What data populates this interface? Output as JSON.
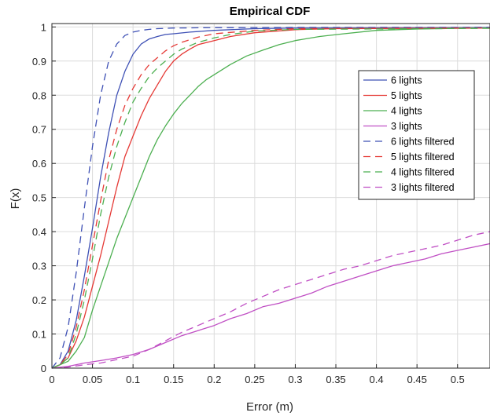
{
  "chart_data": {
    "type": "line",
    "title": "Empirical CDF",
    "xlabel": "Error (m)",
    "ylabel": "F(x)",
    "xlim": [
      0,
      0.54
    ],
    "ylim": [
      0,
      1.01
    ],
    "xticks": [
      0,
      0.05,
      0.1,
      0.15,
      0.2,
      0.25,
      0.3,
      0.35,
      0.4,
      0.45,
      0.5
    ],
    "xtick_labels": [
      "0",
      "0.05",
      "0.1",
      "0.15",
      "0.2",
      "0.25",
      "0.3",
      "0.35",
      "0.4",
      "0.45",
      "0.5"
    ],
    "yticks": [
      0,
      0.1,
      0.2,
      0.3,
      0.4,
      0.5,
      0.6,
      0.7,
      0.8,
      0.9,
      1
    ],
    "ytick_labels": [
      "0",
      "0.1",
      "0.2",
      "0.3",
      "0.4",
      "0.5",
      "0.6",
      "0.7",
      "0.8",
      "0.9",
      "1"
    ],
    "grid": true,
    "legend_position": "top-right",
    "series": [
      {
        "name": "6 lights",
        "color": "#3f51b5",
        "dashed": false,
        "x": [
          0,
          0.01,
          0.02,
          0.03,
          0.04,
          0.05,
          0.06,
          0.07,
          0.08,
          0.09,
          0.1,
          0.11,
          0.12,
          0.13,
          0.14,
          0.15,
          0.17,
          0.2,
          0.25,
          0.3,
          0.54
        ],
        "y": [
          0,
          0.01,
          0.05,
          0.14,
          0.27,
          0.41,
          0.56,
          0.69,
          0.8,
          0.87,
          0.92,
          0.95,
          0.965,
          0.972,
          0.978,
          0.98,
          0.985,
          0.99,
          0.995,
          0.997,
          0.998
        ]
      },
      {
        "name": "5 lights",
        "color": "#e53935",
        "dashed": false,
        "x": [
          0,
          0.01,
          0.02,
          0.03,
          0.04,
          0.05,
          0.06,
          0.07,
          0.08,
          0.09,
          0.1,
          0.11,
          0.12,
          0.13,
          0.14,
          0.15,
          0.16,
          0.17,
          0.18,
          0.2,
          0.22,
          0.25,
          0.3,
          0.35,
          0.54
        ],
        "y": [
          0,
          0.01,
          0.03,
          0.08,
          0.15,
          0.24,
          0.33,
          0.43,
          0.53,
          0.62,
          0.68,
          0.74,
          0.79,
          0.83,
          0.87,
          0.9,
          0.92,
          0.935,
          0.948,
          0.96,
          0.972,
          0.983,
          0.992,
          0.995,
          0.997
        ]
      },
      {
        "name": "4 lights",
        "color": "#4caf50",
        "dashed": false,
        "x": [
          0,
          0.01,
          0.02,
          0.03,
          0.04,
          0.05,
          0.06,
          0.07,
          0.08,
          0.09,
          0.1,
          0.11,
          0.12,
          0.13,
          0.14,
          0.15,
          0.16,
          0.17,
          0.18,
          0.19,
          0.2,
          0.22,
          0.24,
          0.26,
          0.28,
          0.3,
          0.33,
          0.36,
          0.4,
          0.45,
          0.5,
          0.54
        ],
        "y": [
          0,
          0.01,
          0.02,
          0.05,
          0.09,
          0.17,
          0.24,
          0.31,
          0.38,
          0.44,
          0.5,
          0.56,
          0.62,
          0.67,
          0.71,
          0.745,
          0.775,
          0.8,
          0.825,
          0.845,
          0.86,
          0.89,
          0.915,
          0.932,
          0.948,
          0.96,
          0.972,
          0.98,
          0.99,
          0.994,
          0.996,
          0.997
        ]
      },
      {
        "name": "3 lights",
        "color": "#c04fc4",
        "dashed": false,
        "x": [
          0,
          0.02,
          0.04,
          0.06,
          0.08,
          0.1,
          0.12,
          0.14,
          0.16,
          0.18,
          0.2,
          0.22,
          0.24,
          0.26,
          0.28,
          0.3,
          0.32,
          0.34,
          0.36,
          0.38,
          0.4,
          0.42,
          0.44,
          0.46,
          0.48,
          0.5,
          0.52,
          0.54
        ],
        "y": [
          0,
          0.005,
          0.015,
          0.022,
          0.03,
          0.04,
          0.055,
          0.075,
          0.095,
          0.11,
          0.125,
          0.145,
          0.16,
          0.18,
          0.19,
          0.205,
          0.22,
          0.24,
          0.255,
          0.27,
          0.285,
          0.3,
          0.31,
          0.32,
          0.335,
          0.345,
          0.355,
          0.365
        ]
      },
      {
        "name": "6 lights filtered",
        "color": "#3f51b5",
        "dashed": true,
        "x": [
          0,
          0.01,
          0.02,
          0.03,
          0.04,
          0.05,
          0.06,
          0.07,
          0.08,
          0.09,
          0.1,
          0.11,
          0.12,
          0.13,
          0.15,
          0.2,
          0.54
        ],
        "y": [
          0,
          0.03,
          0.12,
          0.28,
          0.47,
          0.65,
          0.8,
          0.9,
          0.95,
          0.975,
          0.985,
          0.99,
          0.993,
          0.995,
          0.997,
          0.998,
          0.999
        ]
      },
      {
        "name": "5 lights filtered",
        "color": "#e53935",
        "dashed": true,
        "x": [
          0,
          0.01,
          0.02,
          0.03,
          0.04,
          0.05,
          0.06,
          0.07,
          0.08,
          0.09,
          0.1,
          0.11,
          0.12,
          0.13,
          0.14,
          0.15,
          0.16,
          0.18,
          0.2,
          0.25,
          0.3,
          0.54
        ],
        "y": [
          0,
          0.01,
          0.04,
          0.12,
          0.23,
          0.36,
          0.49,
          0.61,
          0.7,
          0.77,
          0.82,
          0.86,
          0.89,
          0.91,
          0.93,
          0.945,
          0.955,
          0.97,
          0.98,
          0.99,
          0.995,
          0.997
        ]
      },
      {
        "name": "4 lights filtered",
        "color": "#4caf50",
        "dashed": true,
        "x": [
          0,
          0.01,
          0.02,
          0.03,
          0.04,
          0.05,
          0.06,
          0.07,
          0.08,
          0.09,
          0.1,
          0.11,
          0.12,
          0.13,
          0.14,
          0.15,
          0.16,
          0.17,
          0.18,
          0.2,
          0.22,
          0.25,
          0.3,
          0.54
        ],
        "y": [
          0,
          0.01,
          0.03,
          0.1,
          0.2,
          0.32,
          0.45,
          0.56,
          0.65,
          0.72,
          0.78,
          0.82,
          0.855,
          0.88,
          0.9,
          0.92,
          0.935,
          0.945,
          0.955,
          0.968,
          0.978,
          0.988,
          0.993,
          0.996
        ]
      },
      {
        "name": "3 lights filtered",
        "color": "#c04fc4",
        "dashed": true,
        "x": [
          0,
          0.02,
          0.04,
          0.06,
          0.08,
          0.1,
          0.12,
          0.14,
          0.16,
          0.18,
          0.2,
          0.22,
          0.24,
          0.26,
          0.28,
          0.3,
          0.32,
          0.34,
          0.36,
          0.38,
          0.4,
          0.42,
          0.44,
          0.46,
          0.48,
          0.5,
          0.52,
          0.54
        ],
        "y": [
          0,
          0.003,
          0.01,
          0.015,
          0.025,
          0.035,
          0.055,
          0.08,
          0.105,
          0.125,
          0.145,
          0.165,
          0.19,
          0.21,
          0.23,
          0.245,
          0.26,
          0.275,
          0.29,
          0.3,
          0.315,
          0.33,
          0.34,
          0.35,
          0.36,
          0.375,
          0.39,
          0.4
        ]
      }
    ]
  }
}
